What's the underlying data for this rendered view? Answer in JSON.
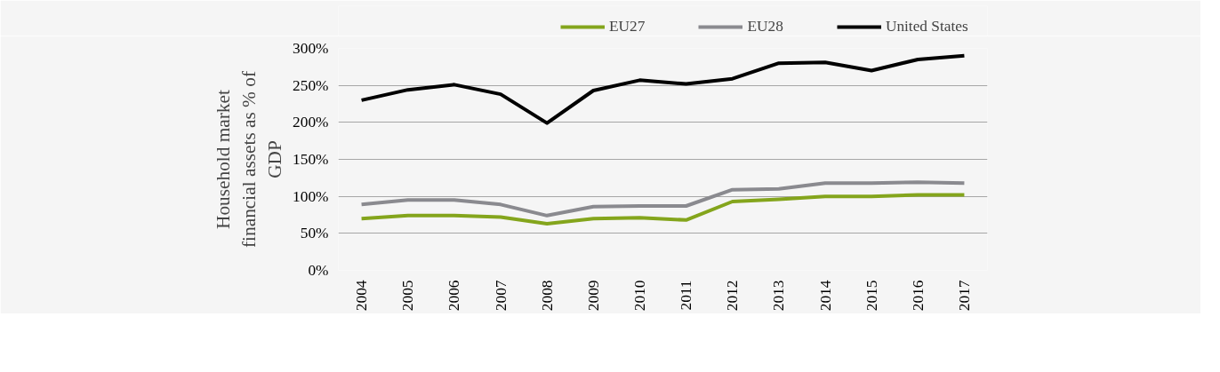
{
  "chart_data": {
    "type": "line",
    "ylabel": "Household market financial assets as % of GDP",
    "categories": [
      "2004",
      "2005",
      "2006",
      "2007",
      "2008",
      "2009",
      "2010",
      "2011",
      "2012",
      "2013",
      "2014",
      "2015",
      "2016",
      "2017"
    ],
    "series": [
      {
        "name": "EU27",
        "color": "#84a51c",
        "values": [
          70,
          74,
          74,
          72,
          63,
          70,
          71,
          68,
          93,
          96,
          100,
          100,
          102,
          102
        ]
      },
      {
        "name": "EU28",
        "color": "#8a8a8f",
        "values": [
          89,
          95,
          95,
          89,
          74,
          86,
          87,
          87,
          109,
          110,
          118,
          118,
          119,
          118
        ]
      },
      {
        "name": "United States",
        "color": "#000000",
        "values": [
          230,
          244,
          251,
          238,
          199,
          243,
          257,
          252,
          259,
          280,
          281,
          270,
          285,
          290
        ]
      }
    ],
    "ylim": [
      0,
      300
    ],
    "yticks": [
      {
        "value": 0,
        "label": "0%"
      },
      {
        "value": 50,
        "label": "50%"
      },
      {
        "value": 100,
        "label": "100%"
      },
      {
        "value": 150,
        "label": "150%"
      },
      {
        "value": 200,
        "label": "200%"
      },
      {
        "value": 250,
        "label": "250%"
      },
      {
        "value": 300,
        "label": "300%"
      }
    ],
    "grid": "y",
    "legend": "top",
    "marker": "none",
    "line_style": "solid"
  }
}
